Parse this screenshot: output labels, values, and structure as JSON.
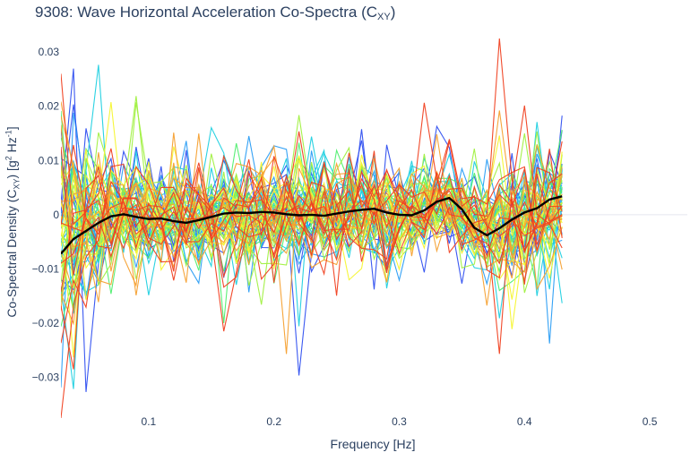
{
  "chart_data": {
    "type": "line",
    "title": {
      "prefix": "9308: Wave Horizontal Acceleration Co-Spectra (C",
      "sub": "XY",
      "suffix": ")"
    },
    "xlabel": "Frequency [Hz]",
    "ylabel": {
      "part1": "Co-Spectral Density (C",
      "sub": "XY",
      "part2": ") [g",
      "sup1": "2",
      "part3": " Hz",
      "sup2": "-1",
      "part4": "]"
    },
    "xlim": [
      0.03,
      0.53
    ],
    "ylim": [
      -0.038,
      0.033
    ],
    "x_ticks": [
      0.1,
      0.2,
      0.3,
      0.4,
      0.5
    ],
    "x_tick_labels": [
      "0.1",
      "0.2",
      "0.3",
      "0.4",
      "0.5"
    ],
    "y_ticks": [
      -0.03,
      -0.02,
      -0.01,
      0,
      0.01,
      0.02,
      0.03
    ],
    "y_tick_labels": [
      "−0.03",
      "−0.02",
      "−0.01",
      "0",
      "0.01",
      "0.02",
      "0.03"
    ],
    "gridlines": false,
    "freq_start": 0.03,
    "freq_step": 0.01,
    "series_count": 70,
    "colorscale": [
      "#3050f0",
      "#2a9df4",
      "#20d0e0",
      "#50ee70",
      "#a0f040",
      "#f5f530",
      "#f5a030",
      "#f04020"
    ],
    "mean_series": {
      "name": "mean",
      "color": "#000000",
      "values": [
        -0.0072,
        -0.0045,
        -0.003,
        -0.0015,
        -0.0003,
        0.0001,
        -0.0004,
        -0.0008,
        -0.0007,
        -0.0012,
        -0.0015,
        -0.001,
        -0.0004,
        0.0002,
        0.0004,
        0.0003,
        0.0005,
        0.0004,
        0.0001,
        -0.0001,
        0.0,
        -0.0002,
        0.0002,
        0.0006,
        0.0009,
        0.0011,
        0.0004,
        0.0,
        -0.0001,
        0.0008,
        0.0024,
        0.0031,
        0.001,
        -0.0024,
        -0.0038,
        -0.0025,
        -0.0009,
        0.0004,
        0.0012,
        0.0028,
        0.0034
      ]
    }
  }
}
